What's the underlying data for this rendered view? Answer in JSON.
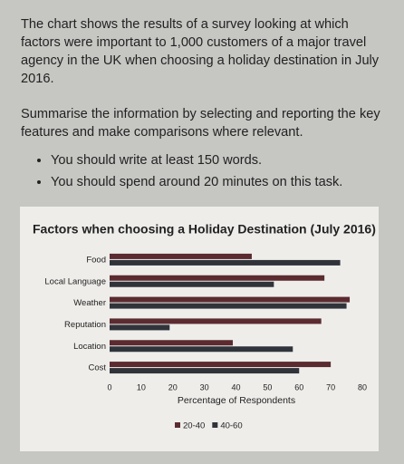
{
  "intro": "The chart shows the results of a survey looking at which factors were important to 1,000 customers of a major travel agency in the UK when choosing a holiday destination in July 2016.",
  "instruction": "Summarise the information by selecting and reporting the key features and make comparisons where relevant.",
  "bullets": [
    "You should write at least 150 words.",
    "You should spend around 20 minutes on this task."
  ],
  "chart_data": {
    "type": "hbar",
    "title": "Factors when choosing a Holiday Destination (July 2016)",
    "categories": [
      "Food",
      "Local Language",
      "Weather",
      "Reputation",
      "Location",
      "Cost"
    ],
    "series": [
      {
        "name": "20-40",
        "color": "#5b2b30",
        "values": [
          45,
          68,
          76,
          67,
          39,
          70
        ]
      },
      {
        "name": "40-60",
        "color": "#30333a",
        "values": [
          73,
          52,
          75,
          19,
          58,
          60
        ]
      }
    ],
    "xlabel": "Percentage of Respondents",
    "xlim": [
      0,
      80
    ],
    "xticks": [
      0,
      10,
      20,
      30,
      40,
      50,
      60,
      70,
      80
    ]
  }
}
